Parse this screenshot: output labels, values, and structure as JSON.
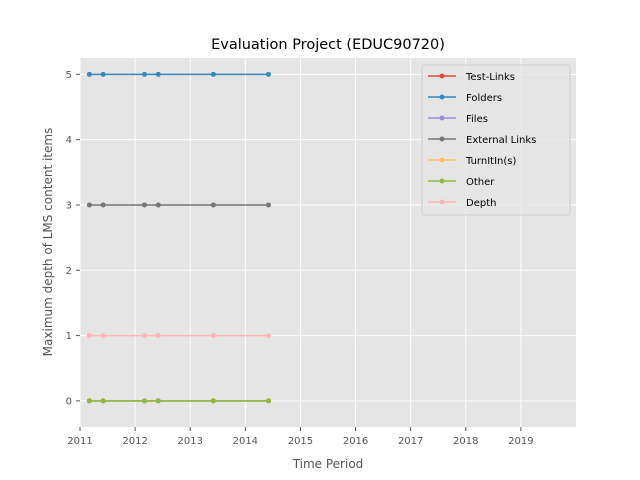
{
  "chart_data": {
    "type": "line",
    "title": "Evaluation Project (EDUC90720)",
    "xlabel": "Time Period",
    "ylabel": "Maximum depth of LMS content items",
    "xlim": [
      2011.0,
      2020.0
    ],
    "ylim": [
      -0.4,
      5.25
    ],
    "xticks": [
      2011,
      2012,
      2013,
      2014,
      2015,
      2016,
      2017,
      2018,
      2019
    ],
    "xtick_labels": [
      "2011",
      "2012",
      "2013",
      "2014",
      "2015",
      "2016",
      "2017",
      "2018",
      "2019"
    ],
    "yticks": [
      0,
      1,
      2,
      3,
      4,
      5
    ],
    "ytick_labels": [
      "0",
      "1",
      "2",
      "3",
      "4",
      "5"
    ],
    "grid": true,
    "legend_position": "top-right",
    "x": [
      2011.17,
      2011.42,
      2012.17,
      2012.42,
      2013.42,
      2014.42
    ],
    "series": [
      {
        "name": "Test-Links",
        "color": "#E24A33",
        "values": [
          0,
          0,
          0,
          0,
          0,
          0
        ]
      },
      {
        "name": "Folders",
        "color": "#348ABD",
        "values": [
          5,
          5,
          5,
          5,
          5,
          5
        ]
      },
      {
        "name": "Files",
        "color": "#988ED5",
        "values": [
          0,
          0,
          0,
          0,
          0,
          0
        ]
      },
      {
        "name": "External Links",
        "color": "#777777",
        "values": [
          3,
          3,
          3,
          3,
          3,
          3
        ]
      },
      {
        "name": "TurnItIn(s)",
        "color": "#FBC15E",
        "values": [
          0,
          0,
          0,
          0,
          0,
          0
        ]
      },
      {
        "name": "Other",
        "color": "#8EBA42",
        "values": [
          0,
          0,
          0,
          0,
          0,
          0
        ]
      },
      {
        "name": "Depth",
        "color": "#FFB5B8",
        "values": [
          1,
          1,
          1,
          1,
          1,
          1
        ]
      }
    ]
  }
}
